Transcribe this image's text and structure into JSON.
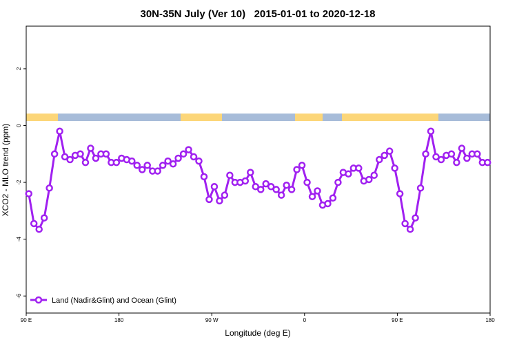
{
  "chart_data": {
    "type": "line",
    "title": "30N-35N July (Ver 10)   2015-01-01 to 2020-12-18",
    "xlabel": "Longitude (deg E)",
    "ylabel": "XCO2 - MLO trend (ppm)",
    "x": [
      92.5,
      97.5,
      102.5,
      107.5,
      112.5,
      117.5,
      122.5,
      127.5,
      132.5,
      137.5,
      142.5,
      147.5,
      152.5,
      157.5,
      162.5,
      167.5,
      172.5,
      177.5,
      182.5,
      187.5,
      192.5,
      197.5,
      202.5,
      207.5,
      212.5,
      217.5,
      222.5,
      227.5,
      232.5,
      237.5,
      242.5,
      247.5,
      252.5,
      257.5,
      262.5,
      267.5,
      272.5,
      277.5,
      282.5,
      287.5,
      292.5,
      297.5,
      302.5,
      307.5,
      312.5,
      317.5,
      322.5,
      327.5,
      332.5,
      337.5,
      342.5,
      347.5,
      352.5,
      357.5,
      362.5,
      367.5,
      372.5,
      377.5,
      382.5,
      387.5,
      392.5,
      397.5,
      402.5,
      407.5,
      412.5,
      417.5,
      422.5,
      427.5,
      432.5,
      437.5,
      442.5,
      447.5,
      452.5,
      457.5,
      462.5,
      467.5,
      472.5,
      477.5,
      482.5,
      487.5,
      492.5,
      497.5,
      502.5,
      507.5,
      512.5,
      517.5,
      522.5,
      527.5,
      532.5,
      537.5
    ],
    "series": [
      {
        "name": "Land (Nadir&Glint) and Ocean (Glint)",
        "color": "#a020f0",
        "values": [
          -2.4,
          -3.45,
          -3.65,
          -3.25,
          -2.2,
          -1.0,
          -0.2,
          -1.1,
          -1.2,
          -1.05,
          -1.0,
          -1.3,
          -0.8,
          -1.15,
          -1.0,
          -1.0,
          -1.3,
          -1.3,
          -1.15,
          -1.2,
          -1.25,
          -1.4,
          -1.55,
          -1.4,
          -1.6,
          -1.6,
          -1.4,
          -1.25,
          -1.35,
          -1.15,
          -1.0,
          -0.85,
          -1.1,
          -1.25,
          -1.8,
          -2.6,
          -2.15,
          -2.65,
          -2.45,
          -1.75,
          -2.0,
          -2.0,
          -1.95,
          -1.65,
          -2.15,
          -2.25,
          -2.05,
          -2.15,
          -2.25,
          -2.45,
          -2.1,
          -2.25,
          -1.55,
          -1.4,
          -2.0,
          -2.5,
          -2.3,
          -2.8,
          -2.75,
          -2.55,
          -2.0,
          -1.65,
          -1.7,
          -1.5,
          -1.5,
          -1.95,
          -1.9,
          -1.75,
          -1.2,
          -1.05,
          -0.9,
          -1.5,
          -2.4,
          -3.45,
          -3.65,
          -3.25,
          -2.2,
          -1.0,
          -0.2,
          -1.1,
          -1.2,
          -1.05,
          -1.0,
          -1.3,
          -0.8,
          -1.15,
          -1.0,
          -1.0,
          -1.3,
          -1.3
        ]
      }
    ],
    "xlim": [
      90,
      540
    ],
    "xticks": [
      {
        "value": 90,
        "label": "90 E"
      },
      180,
      {
        "value": 270,
        "label": "90 W"
      },
      {
        "value": 360,
        "label": "0"
      },
      {
        "value": 450,
        "label": "90 E"
      },
      {
        "value": 540,
        "label": "180"
      }
    ],
    "ylim": [
      -6.6,
      3.5
    ],
    "yticks": [
      -6,
      -4,
      -2,
      0,
      2
    ],
    "legend": "bottomleft"
  }
}
